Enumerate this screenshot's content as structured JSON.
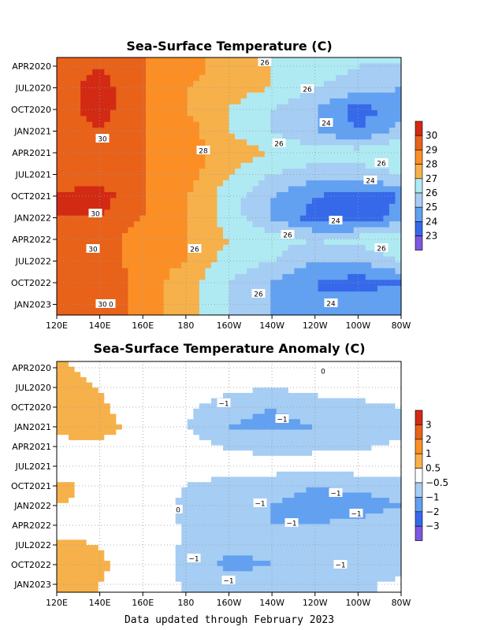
{
  "footer": "Data updated through February 2023",
  "chart_data": [
    {
      "type": "heatmap",
      "title": "Sea-Surface Temperature (C)",
      "xlabel": "",
      "ylabel": "",
      "x_ticks": [
        "120E",
        "140E",
        "160E",
        "180",
        "160W",
        "140W",
        "120W",
        "100W",
        "80W"
      ],
      "y_ticks": [
        "APR2020",
        "JUL2020",
        "OCT2020",
        "JAN2021",
        "APR2021",
        "JUL2021",
        "OCT2021",
        "JAN2022",
        "APR2022",
        "JUL2022",
        "OCT2022",
        "JAN2023"
      ],
      "colorbar": {
        "labels": [
          "30",
          "29",
          "28",
          "27",
          "26",
          "25",
          "24",
          "23"
        ],
        "colors": [
          "#d32a14",
          "#e8621a",
          "#fb8f26",
          "#f6b14a",
          "#afeaf3",
          "#a6cdf3",
          "#62a0f1",
          "#3669ea",
          "#7c59e0"
        ]
      },
      "contour_labels": [
        "26",
        "26",
        "24",
        "30",
        "26",
        "28",
        "26",
        "24",
        "30",
        "24",
        "30",
        "26",
        "26",
        "26",
        "30",
        "26",
        "24",
        "30"
      ],
      "x_values": [
        "120E",
        "140E",
        "160E",
        "180",
        "160W",
        "140W",
        "120W",
        "100W",
        "80W"
      ],
      "times": [
        "APR2020",
        "JUL2020",
        "OCT2020",
        "JAN2021",
        "APR2021",
        "JUL2021",
        "OCT2021",
        "JAN2022",
        "APR2022",
        "JUL2022",
        "OCT2022",
        "JAN2023"
      ],
      "values": [
        [
          29.5,
          30.0,
          29.0,
          28.5,
          27.5,
          27.0,
          26.5,
          26.0,
          26.0
        ],
        [
          29.5,
          30.5,
          29.0,
          28.0,
          27.5,
          27.0,
          26.0,
          25.5,
          25.0
        ],
        [
          29.5,
          30.5,
          29.0,
          28.0,
          27.0,
          26.0,
          25.0,
          23.5,
          24.5
        ],
        [
          29.5,
          30.0,
          29.0,
          28.5,
          27.0,
          26.0,
          25.0,
          24.0,
          25.5
        ],
        [
          29.5,
          29.5,
          29.0,
          28.5,
          27.5,
          27.0,
          26.5,
          26.5,
          27.0
        ],
        [
          29.5,
          29.5,
          29.0,
          28.5,
          27.0,
          26.0,
          25.5,
          25.5,
          26.0
        ],
        [
          30.0,
          30.5,
          29.0,
          28.0,
          26.5,
          25.0,
          24.0,
          23.5,
          24.0
        ],
        [
          30.0,
          30.0,
          29.0,
          28.0,
          26.5,
          25.0,
          23.5,
          23.0,
          24.5
        ],
        [
          29.5,
          29.5,
          28.5,
          28.0,
          27.0,
          26.5,
          26.0,
          26.5,
          27.0
        ],
        [
          30.0,
          29.5,
          28.5,
          28.0,
          26.5,
          26.0,
          25.0,
          25.0,
          26.0
        ],
        [
          29.5,
          30.0,
          28.5,
          27.5,
          26.0,
          25.0,
          24.0,
          23.5,
          24.0
        ],
        [
          29.5,
          30.0,
          28.5,
          27.5,
          26.0,
          25.0,
          24.0,
          24.5,
          25.0
        ]
      ]
    },
    {
      "type": "heatmap",
      "title": "Sea-Surface Temperature Anomaly (C)",
      "xlabel": "",
      "ylabel": "",
      "x_ticks": [
        "120E",
        "140E",
        "160E",
        "180",
        "160W",
        "140W",
        "120W",
        "100W",
        "80W"
      ],
      "y_ticks": [
        "APR2020",
        "JUL2020",
        "OCT2020",
        "JAN2021",
        "APR2021",
        "JUL2021",
        "OCT2021",
        "JAN2022",
        "APR2022",
        "JUL2022",
        "OCT2022",
        "JAN2023"
      ],
      "colorbar": {
        "labels": [
          "3",
          "2",
          "1",
          "0.5",
          "−0.5",
          "−1",
          "−2",
          "−3"
        ],
        "colors": [
          "#d32a14",
          "#e8621a",
          "#fb8f26",
          "#f6b14a",
          "#ffffff",
          "#a6cdf3",
          "#62a0f1",
          "#3669ea",
          "#7c59e0"
        ]
      },
      "contour_labels": [
        "0",
        "−1",
        "−1",
        "0",
        "−1",
        "−1",
        "−1",
        "−1",
        "−1",
        "−1",
        "−1"
      ],
      "x_values": [
        "120E",
        "140E",
        "160E",
        "180",
        "160W",
        "140W",
        "120W",
        "100W",
        "80W"
      ],
      "times": [
        "APR2020",
        "JUL2020",
        "OCT2020",
        "JAN2021",
        "APR2021",
        "JUL2021",
        "OCT2021",
        "JAN2022",
        "APR2022",
        "JUL2022",
        "OCT2022",
        "JAN2023"
      ],
      "values": [
        [
          0.6,
          0.3,
          0.0,
          0.0,
          0.0,
          0.0,
          0.0,
          0.0,
          0.0
        ],
        [
          0.7,
          0.5,
          0.0,
          0.0,
          -0.3,
          -0.5,
          -0.3,
          -0.2,
          0.0
        ],
        [
          0.8,
          0.6,
          0.2,
          -0.4,
          -0.9,
          -1.0,
          -0.8,
          -0.7,
          -0.5
        ],
        [
          0.7,
          0.7,
          0.3,
          -0.5,
          -1.0,
          -1.1,
          -1.0,
          -0.8,
          -0.6
        ],
        [
          0.3,
          0.4,
          0.2,
          -0.2,
          -0.6,
          -0.7,
          -0.6,
          -0.6,
          -0.4
        ],
        [
          0.2,
          0.2,
          0.0,
          -0.1,
          -0.2,
          -0.2,
          -0.3,
          -0.2,
          0.0
        ],
        [
          0.6,
          0.4,
          0.0,
          -0.5,
          -0.8,
          -0.9,
          -1.0,
          -0.9,
          -0.8
        ],
        [
          0.5,
          0.4,
          0.0,
          -0.7,
          -1.0,
          -1.0,
          -1.1,
          -1.2,
          -1.0
        ],
        [
          0.3,
          0.3,
          0.0,
          -0.6,
          -0.9,
          -1.0,
          -1.0,
          -0.9,
          -0.7
        ],
        [
          0.6,
          0.5,
          0.0,
          -0.6,
          -0.9,
          -0.9,
          -0.8,
          -0.7,
          -0.5
        ],
        [
          0.6,
          0.6,
          0.2,
          -0.8,
          -1.1,
          -1.0,
          -0.9,
          -0.8,
          -0.7
        ],
        [
          0.5,
          0.5,
          0.1,
          -0.6,
          -0.9,
          -0.8,
          -0.7,
          -0.6,
          -0.4
        ]
      ]
    }
  ]
}
